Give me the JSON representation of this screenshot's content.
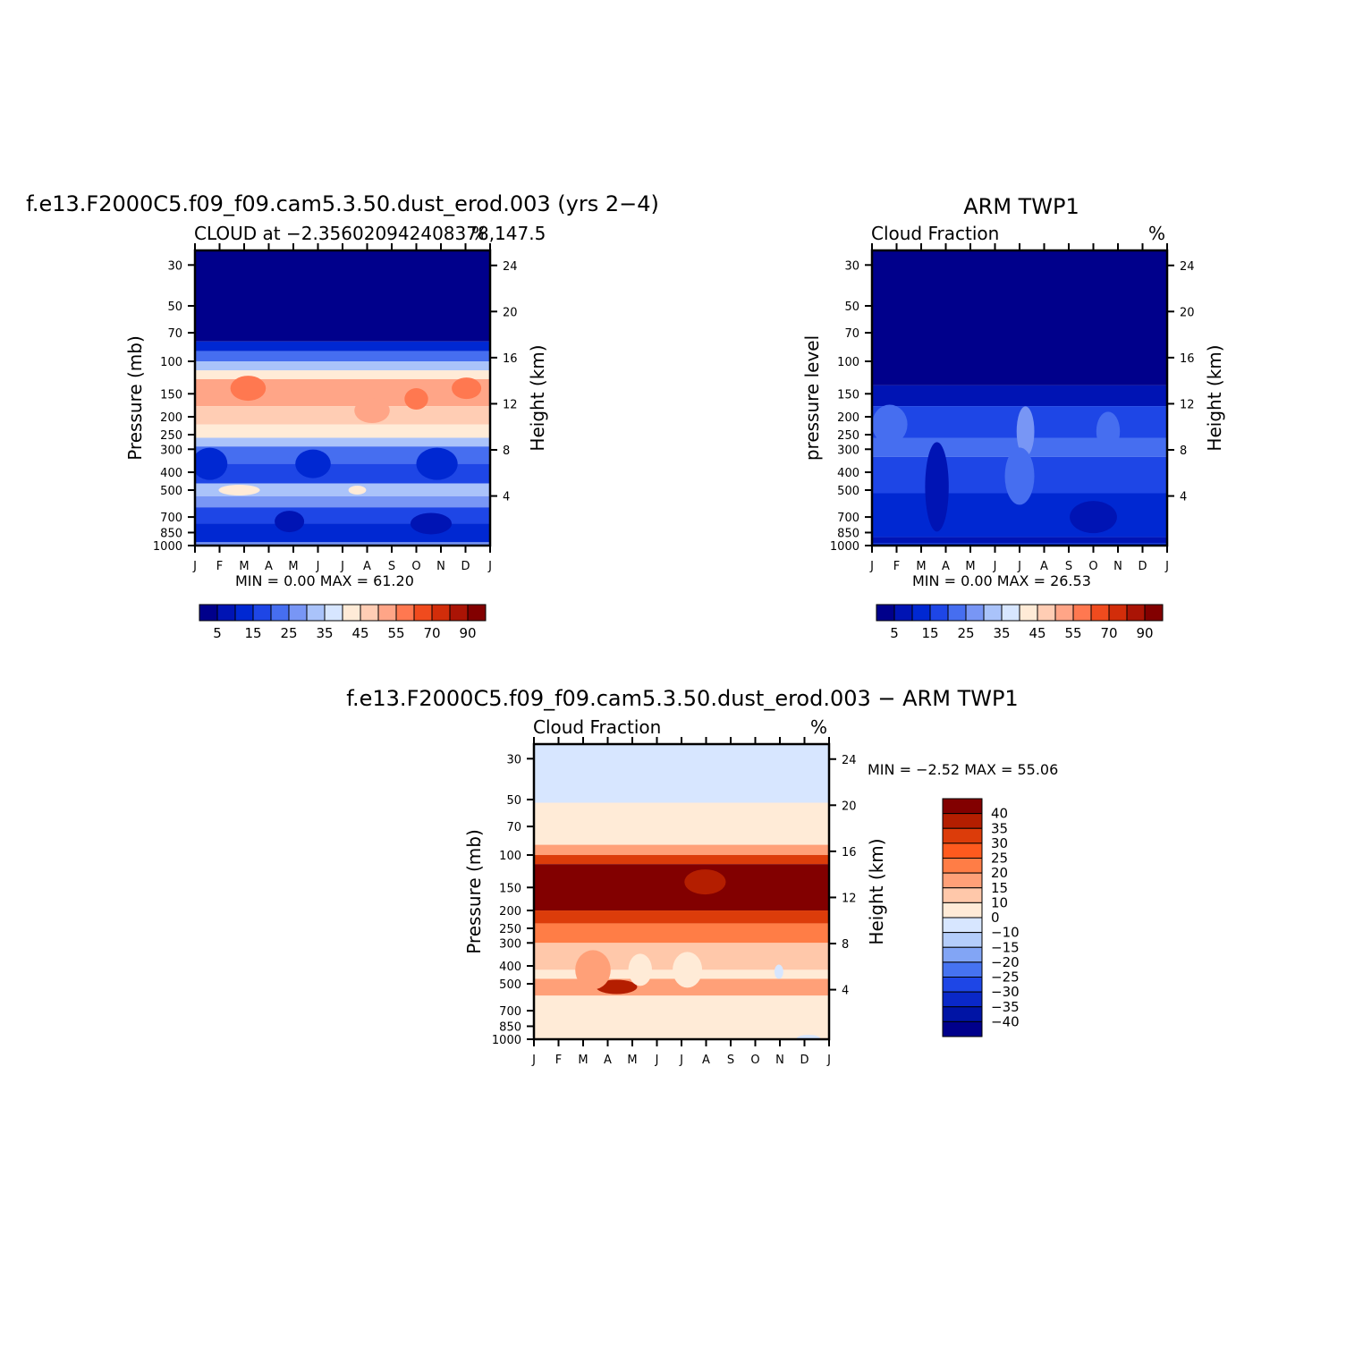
{
  "chart_data": [
    {
      "type": "heatmap",
      "title": "f.e13.F2000C5.f09_f09.cam5.3.50.dust_erod.003 (yrs 2−4)",
      "subtitle_left": "CLOUD at −2.356020942408378,147.5",
      "subtitle_right": "%",
      "ylabel": "Pressure (mb)",
      "ylabel_right": "Height (km)",
      "x_ticks": [
        "J",
        "F",
        "M",
        "A",
        "M",
        "J",
        "J",
        "A",
        "S",
        "O",
        "N",
        "D",
        "J"
      ],
      "y_ticks": [
        30,
        50,
        70,
        100,
        150,
        200,
        250,
        300,
        400,
        500,
        700,
        850,
        1000
      ],
      "y_right_ticks": [
        24,
        20,
        16,
        12,
        8,
        4
      ],
      "min_label": "MIN =",
      "min_value": "0.00",
      "max_label": "MAX =",
      "max_value": "61.20",
      "colorbar": {
        "orientation": "horizontal",
        "labels": [
          "5",
          "15",
          "25",
          "35",
          "45",
          "55",
          "70",
          "90"
        ],
        "colors": [
          "#00008b",
          "#0014b4",
          "#0028d2",
          "#1e46e6",
          "#466ef0",
          "#7896f5",
          "#aac3fa",
          "#d7e6ff",
          "#ffebd7",
          "#ffcdb4",
          "#ffa587",
          "#ff7850",
          "#f04b1e",
          "#d22d0a",
          "#aa1405",
          "#820000"
        ]
      },
      "levels": [
        5,
        10,
        15,
        20,
        25,
        30,
        35,
        40,
        45,
        50,
        55,
        60,
        70,
        80,
        90
      ]
    },
    {
      "type": "heatmap",
      "title": "ARM TWP1",
      "subtitle_left": "Cloud Fraction",
      "subtitle_right": "%",
      "ylabel": "pressure level",
      "ylabel_right": "Height (km)",
      "x_ticks": [
        "J",
        "F",
        "M",
        "A",
        "M",
        "J",
        "J",
        "A",
        "S",
        "O",
        "N",
        "D",
        "J"
      ],
      "y_ticks": [
        30,
        50,
        70,
        100,
        150,
        200,
        250,
        300,
        400,
        500,
        700,
        850,
        1000
      ],
      "y_right_ticks": [
        24,
        20,
        16,
        12,
        8,
        4
      ],
      "min_label": "MIN =",
      "min_value": "0.00",
      "max_label": "MAX =",
      "max_value": "26.53",
      "colorbar": {
        "orientation": "horizontal",
        "labels": [
          "5",
          "15",
          "25",
          "35",
          "45",
          "55",
          "70",
          "90"
        ],
        "colors": [
          "#00008b",
          "#0014b4",
          "#0028d2",
          "#1e46e6",
          "#466ef0",
          "#7896f5",
          "#aac3fa",
          "#d7e6ff",
          "#ffebd7",
          "#ffcdb4",
          "#ffa587",
          "#ff7850",
          "#f04b1e",
          "#d22d0a",
          "#aa1405",
          "#820000"
        ]
      },
      "levels": [
        5,
        10,
        15,
        20,
        25,
        30,
        35,
        40,
        45,
        50,
        55,
        60,
        70,
        80,
        90
      ]
    },
    {
      "type": "heatmap",
      "title": "f.e13.F2000C5.f09_f09.cam5.3.50.dust_erod.003 − ARM TWP1",
      "subtitle_left": "Cloud Fraction",
      "subtitle_right": "%",
      "ylabel": "Pressure (mb)",
      "ylabel_right": "Height (km)",
      "x_ticks": [
        "J",
        "F",
        "M",
        "A",
        "M",
        "J",
        "J",
        "A",
        "S",
        "O",
        "N",
        "D",
        "J"
      ],
      "y_ticks": [
        30,
        50,
        70,
        100,
        150,
        200,
        250,
        300,
        400,
        500,
        700,
        850,
        1000
      ],
      "y_right_ticks": [
        24,
        20,
        16,
        12,
        8,
        4
      ],
      "min_label": "MIN =",
      "min_value": "−2.52",
      "max_label": "MAX =",
      "max_value": "55.06",
      "colorbar": {
        "orientation": "vertical",
        "labels": [
          "40",
          "35",
          "30",
          "25",
          "20",
          "15",
          "10",
          "0",
          "−10",
          "−15",
          "−20",
          "−25",
          "−30",
          "−35",
          "−40"
        ],
        "colors": [
          "#820000",
          "#b41e00",
          "#dc3c0a",
          "#ff5a1e",
          "#ff7d46",
          "#ffa078",
          "#ffc8aa",
          "#ffebd7",
          "#d7e6ff",
          "#b4cdfa",
          "#82a5f5",
          "#4673f0",
          "#1e46e6",
          "#0a28c8",
          "#0014a5",
          "#00008b"
        ]
      },
      "levels": [
        -40,
        -35,
        -30,
        -25,
        -20,
        -15,
        -10,
        0,
        10,
        15,
        20,
        25,
        30,
        35,
        40
      ]
    }
  ]
}
